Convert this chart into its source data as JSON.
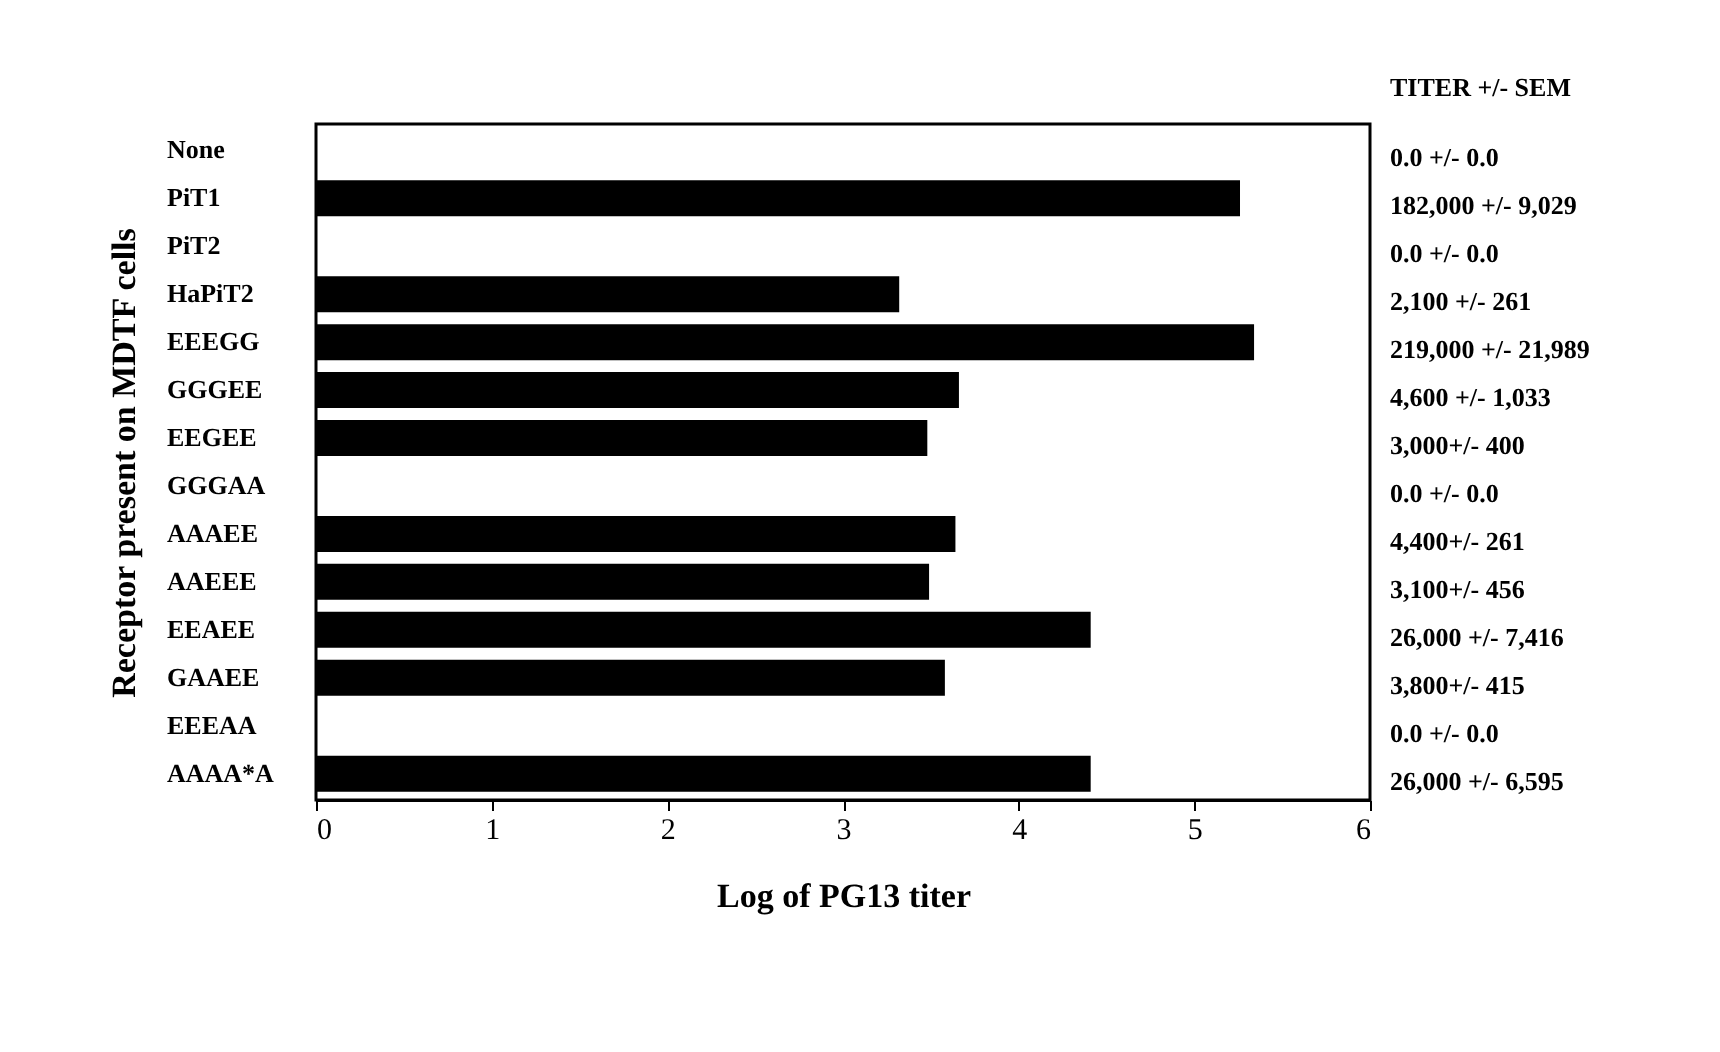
{
  "chart_data": {
    "type": "bar",
    "orientation": "horizontal",
    "xlabel": "Log of PG13 titer",
    "ylabel": "Receptor present on MDTF cells",
    "categories": [
      "None",
      "PiT1",
      "PiT2",
      "HaPiT2",
      "EEEGG",
      "GGGEE",
      "EEGEE",
      "GGGAA",
      "AAAEE",
      "AAEEE",
      "EEAEE",
      "GAAEE",
      "EEEAA",
      "AAAA*A"
    ],
    "values": [
      0,
      5.26,
      0,
      3.32,
      5.34,
      3.66,
      3.48,
      0,
      3.64,
      3.49,
      4.41,
      3.58,
      0,
      4.41
    ],
    "annotations": [
      "TITER +/- SEM",
      "0.0 +/- 0.0",
      "182,000 +/- 9,029",
      "0.0 +/- 0.0",
      "2,100 +/- 261",
      "219,000 +/- 21,989",
      "4,600 +/- 1,033",
      "3,000+/- 400",
      "0.0 +/- 0.0",
      "4,400+/- 261",
      "3,100+/- 456",
      "26,000 +/- 7,416",
      "3,800+/- 415",
      "0.0 +/- 0.0",
      "26,000 +/- 6,595"
    ],
    "color": "#000000",
    "xlim": [
      0,
      6
    ],
    "xticks": [
      0,
      1,
      2,
      3,
      4,
      5,
      6
    ],
    "grid": false
  }
}
